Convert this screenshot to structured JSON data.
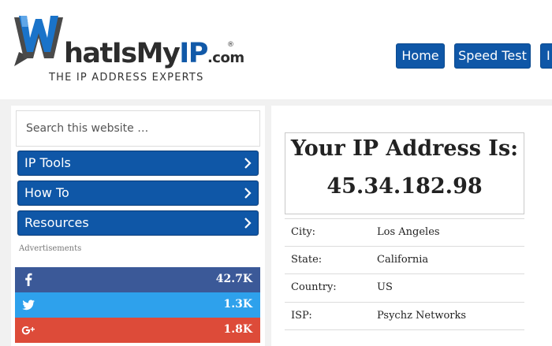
{
  "header": {
    "logo_word_w": "hatIsMy",
    "logo_word_ip": "IP",
    "logo_word_com": ".com",
    "logo_reg": "®",
    "tagline": "THE IP ADDRESS EXPERTS",
    "nav": [
      {
        "label": "Home"
      },
      {
        "label": "Speed Test"
      },
      {
        "label": "I"
      }
    ]
  },
  "sidebar": {
    "search_placeholder": "Search this website …",
    "items": [
      {
        "label": "IP Tools",
        "icon": "chevron-right-icon"
      },
      {
        "label": "How To",
        "icon": "chevron-right-icon"
      },
      {
        "label": "Resources",
        "icon": "chevron-right-icon"
      }
    ],
    "ads_label": "Advertisements",
    "share": [
      {
        "network": "facebook",
        "icon": "facebook-icon",
        "count": "42.7K",
        "color": "#3b5998"
      },
      {
        "network": "twitter",
        "icon": "twitter-icon",
        "count": "1.3K",
        "color": "#2ea1ec"
      },
      {
        "network": "google-plus",
        "icon": "google-plus-icon",
        "count": "1.8K",
        "color": "#dd4b39"
      }
    ]
  },
  "main": {
    "title": "Your IP Address Is:",
    "ip": "45.34.182.98",
    "details": [
      {
        "key": "City:",
        "value": "Los Angeles"
      },
      {
        "key": "State:",
        "value": "California"
      },
      {
        "key": "Country:",
        "value": "US"
      },
      {
        "key": "ISP:",
        "value": "Psychz Networks"
      }
    ]
  },
  "colors": {
    "brand_blue": "#0f57a7",
    "page_bg": "#f1f1f1"
  }
}
